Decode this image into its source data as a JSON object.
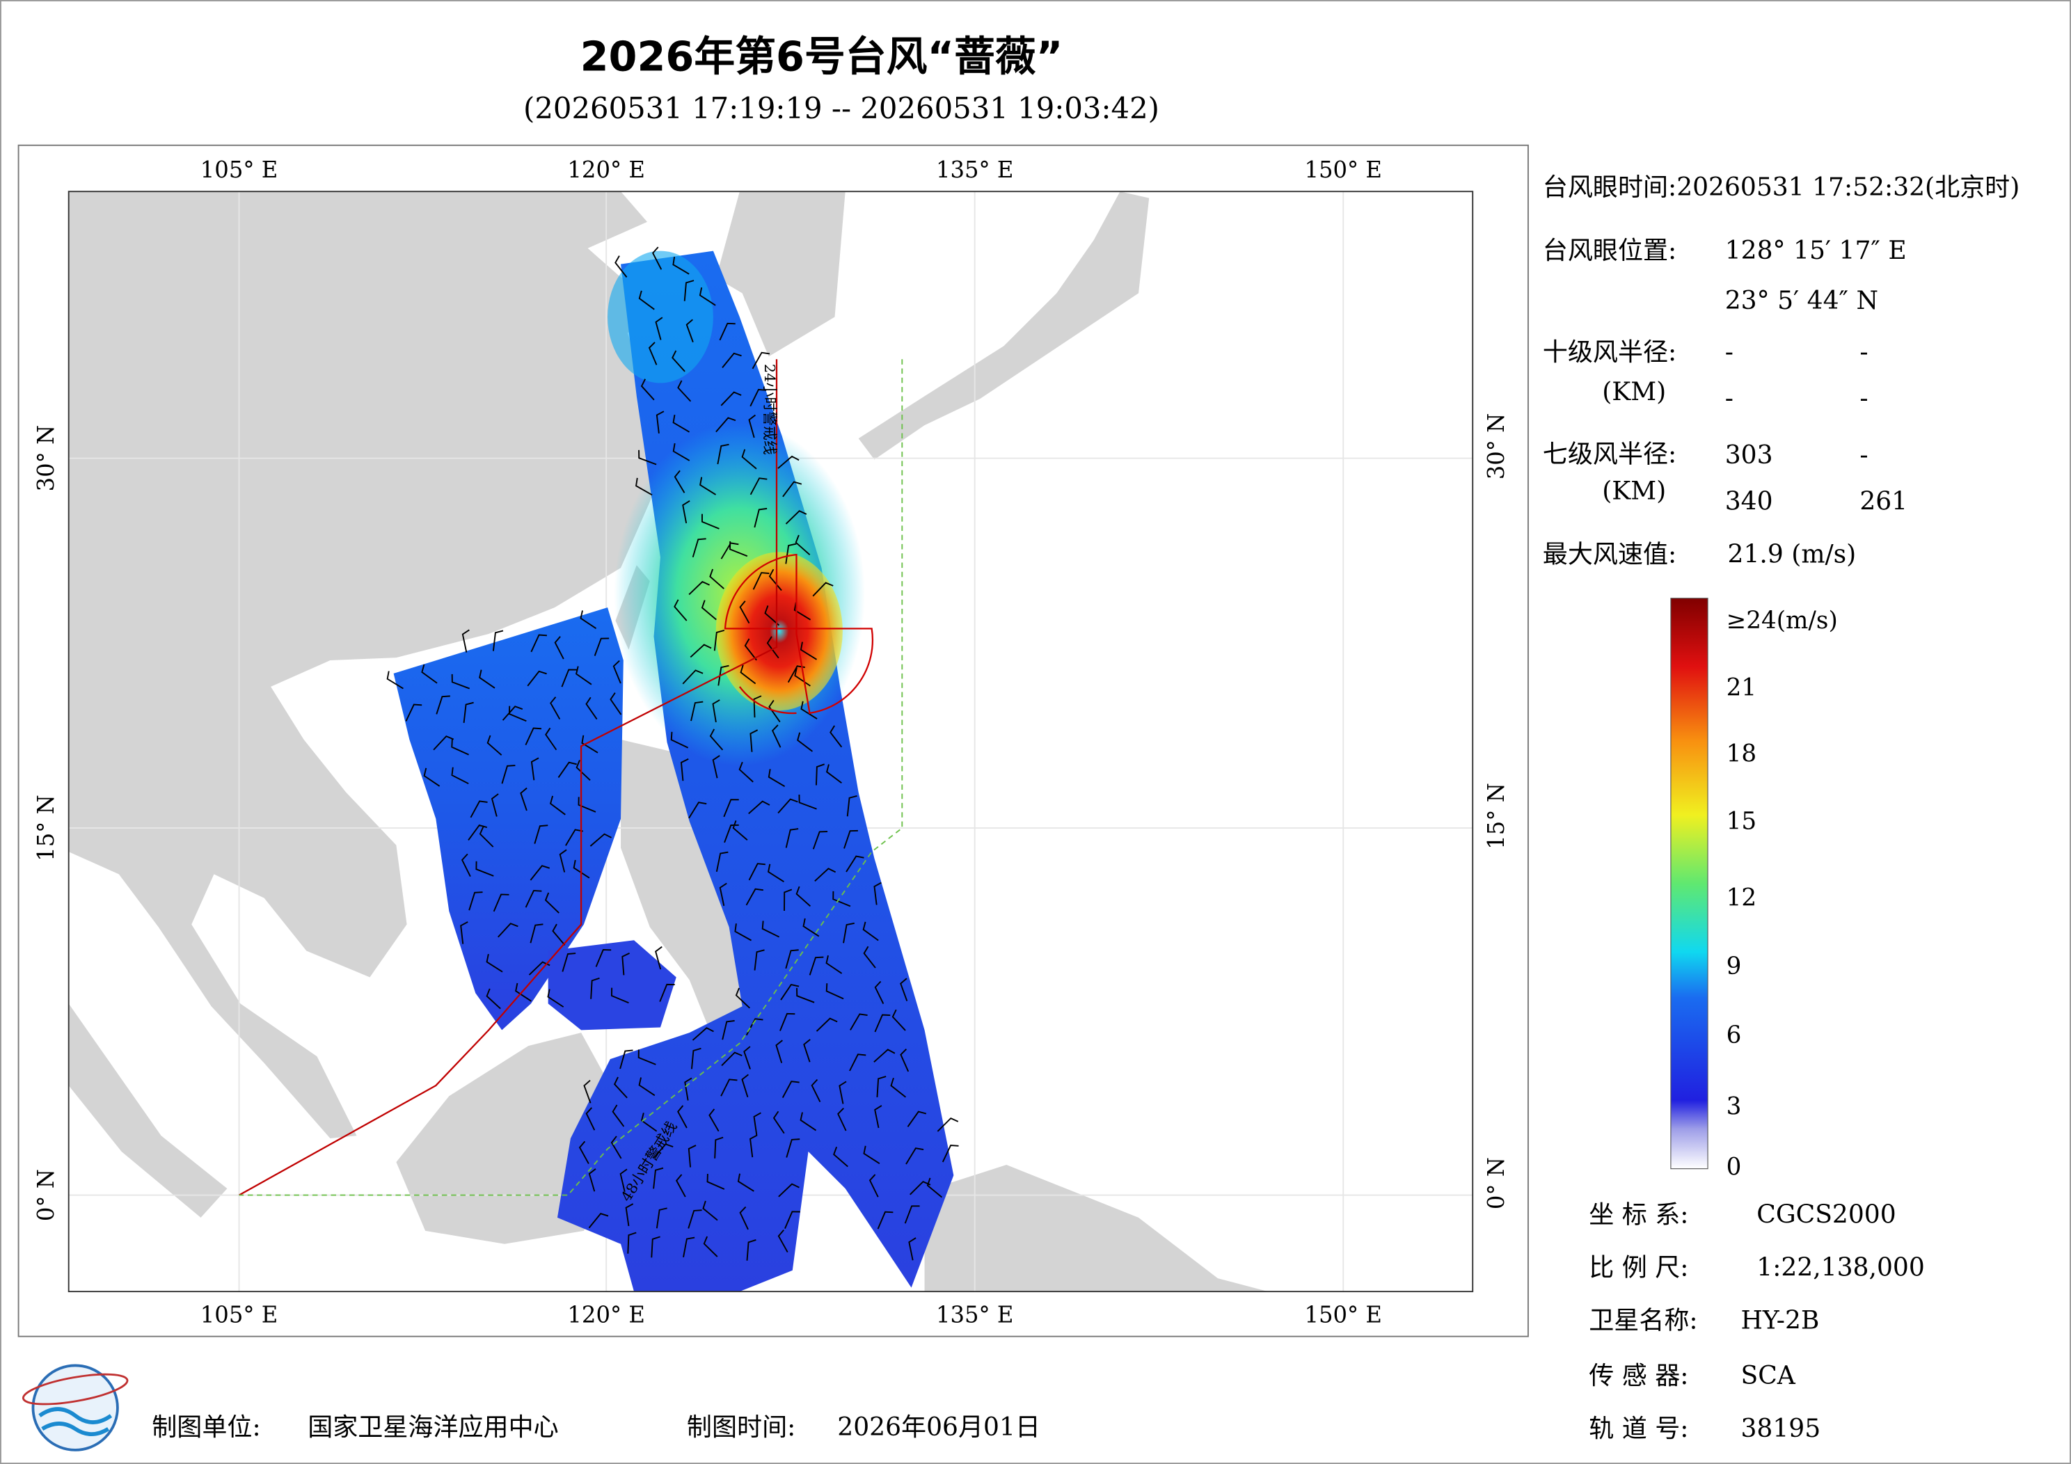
{
  "header": {
    "title": "2026年第6号台风“蔷薇”",
    "subtitle": "(20260531 17:19:19 -- 20260531 19:03:42)"
  },
  "map": {
    "lon_labels": [
      "105° E",
      "120° E",
      "135° E",
      "150° E"
    ],
    "lat_labels": [
      "30° N",
      "15° N",
      "0° N"
    ],
    "line_labels": [
      "24小时警戒线",
      "48小时警戒线"
    ]
  },
  "info": {
    "eye_time": "台风眼时间:20260531 17:52:32(北京时)",
    "eye_position_label": "台风眼位置:",
    "eye_lon": "128° 15′ 17″ E",
    "eye_lat": "23° 5′ 44″ N",
    "r10_label": "十级风半径:",
    "km_label": "(KM)",
    "r10": [
      "-",
      "-",
      "-",
      "-"
    ],
    "r7_label": "七级风半径:",
    "r7": [
      "303",
      "-",
      "340",
      "261"
    ],
    "max_wind_label": "最大风速值:",
    "max_wind": "21.9  (m/s)"
  },
  "colorbar": {
    "labels": [
      "≥24(m/s)",
      "21",
      "18",
      "15",
      "12",
      "9",
      "6",
      "3",
      "0"
    ]
  },
  "meta": [
    {
      "label": "坐 标 系:",
      "value": "CGCS2000"
    },
    {
      "label": "比 例 尺:",
      "value": "1:22,138,000"
    },
    {
      "label": "卫星名称:",
      "value": "HY-2B"
    },
    {
      "label": "传 感 器:",
      "value": "SCA"
    },
    {
      "label": "轨 道 号:",
      "value": "38195"
    }
  ],
  "footer": {
    "producer_label": "制图单位:",
    "producer": "国家卫星海洋应用中心",
    "date_label": "制图时间:",
    "date": "2026年06月01日"
  }
}
